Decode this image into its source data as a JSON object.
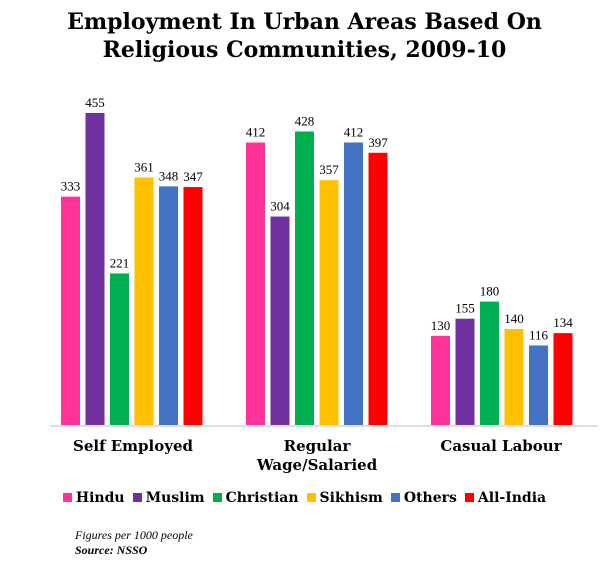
{
  "chart_data": {
    "type": "bar",
    "title": "Employment In Urban Areas Based On Religious Communities, 2009-10",
    "categories": [
      "Self Employed",
      "Regular Wage/Salaried",
      "Casual Labour"
    ],
    "series": [
      {
        "name": "Hindu",
        "color": "#ff3399",
        "values": [
          333,
          412,
          130
        ]
      },
      {
        "name": "Muslim",
        "color": "#7030a0",
        "values": [
          455,
          304,
          155
        ]
      },
      {
        "name": "Christian",
        "color": "#00b050",
        "values": [
          221,
          428,
          180
        ]
      },
      {
        "name": "Sikhism",
        "color": "#ffc000",
        "values": [
          361,
          357,
          140
        ]
      },
      {
        "name": "Others",
        "color": "#4472c4",
        "values": [
          348,
          412,
          116
        ]
      },
      {
        "name": "All-India",
        "color": "#ff0000",
        "values": [
          347,
          397,
          134
        ]
      }
    ],
    "ylim": [
      0,
      500
    ],
    "grid": false,
    "legend": "bottom",
    "notes": {
      "figures": "Figures per 1000 people",
      "source": "Source: NSSO"
    }
  }
}
